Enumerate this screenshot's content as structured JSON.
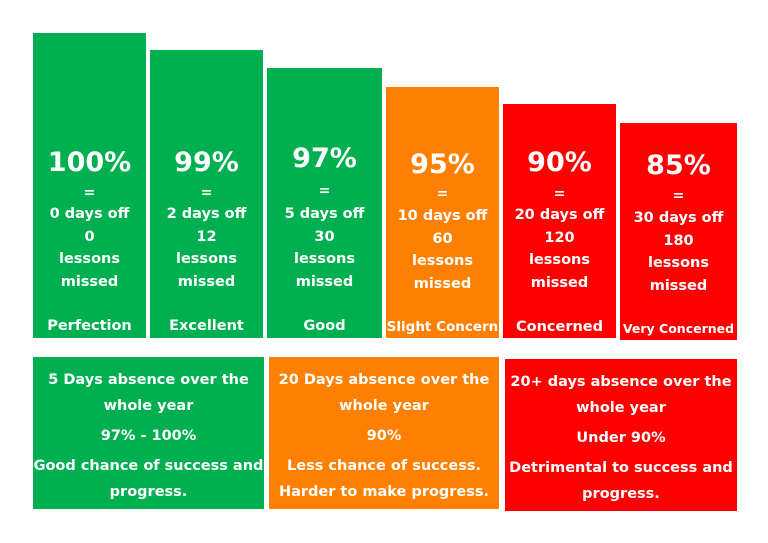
{
  "colors": {
    "green": "#00b050",
    "orange": "#ff8000",
    "red": "#ff0000",
    "text": "#ffffff"
  },
  "bars": [
    {
      "percent": "100%",
      "equals": "=",
      "days_off": "0 days off",
      "lessons": "0",
      "lessons_label_1": "lessons",
      "lessons_label_2": "missed",
      "rating": "Perfection",
      "color": "green"
    },
    {
      "percent": "99%",
      "equals": "=",
      "days_off": "2 days off",
      "lessons": "12",
      "lessons_label_1": "lessons",
      "lessons_label_2": "missed",
      "rating": "Excellent",
      "color": "green"
    },
    {
      "percent": "97%",
      "equals": "=",
      "days_off": "5 days off",
      "lessons": "30",
      "lessons_label_1": "lessons",
      "lessons_label_2": "missed",
      "rating": "Good",
      "color": "green"
    },
    {
      "percent": "95%",
      "equals": "=",
      "days_off": "10 days off",
      "lessons": "60",
      "lessons_label_1": "lessons",
      "lessons_label_2": "missed",
      "rating": "Slight Concern",
      "color": "orange"
    },
    {
      "percent": "90%",
      "equals": "=",
      "days_off": "20 days off",
      "lessons": "120",
      "lessons_label_1": "lessons",
      "lessons_label_2": "missed",
      "rating": "Concerned",
      "color": "red"
    },
    {
      "percent": "85%",
      "equals": "=",
      "days_off": "30 days off",
      "lessons": "180",
      "lessons_label_1": "lessons",
      "lessons_label_2": "missed",
      "rating": "Very Concerned",
      "color": "red"
    }
  ],
  "summary": [
    {
      "heading_1": "5 Days absence over the",
      "heading_2": "whole year",
      "range": "97% - 100%",
      "outcome_1": "Good chance of success and",
      "outcome_2": "progress.",
      "color": "green"
    },
    {
      "heading_1": "20 Days absence over the",
      "heading_2": "whole year",
      "range": "90%",
      "outcome_1": "Less chance of success.",
      "outcome_2": "Harder to make progress.",
      "color": "orange"
    },
    {
      "heading_1": "20+ days absence over the",
      "heading_2": "whole year",
      "range": "Under 90%",
      "outcome_1": "Detrimental to success and",
      "outcome_2": "progress.",
      "color": "red"
    }
  ]
}
